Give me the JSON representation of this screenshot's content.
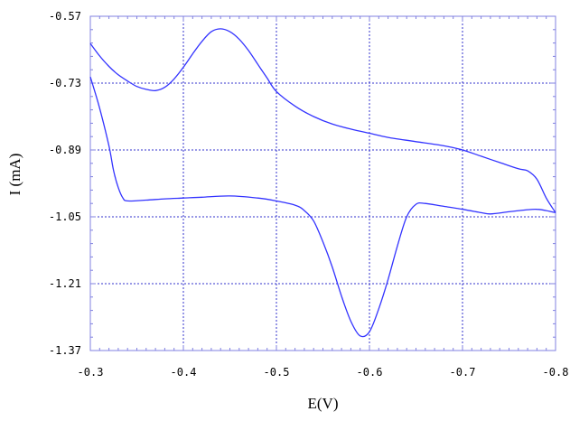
{
  "chart_data": {
    "type": "line",
    "title": "",
    "xlabel": "E(V)",
    "ylabel": "I (mA)",
    "xlim": [
      -0.3,
      -0.8
    ],
    "ylim": [
      -1.37,
      -0.57
    ],
    "x_ticks": [
      -0.3,
      -0.4,
      -0.5,
      -0.6,
      -0.7,
      -0.8
    ],
    "x_tick_labels": [
      "-0.3",
      "-0.4",
      "-0.5",
      "-0.6",
      "-0.7",
      "-0.8"
    ],
    "y_ticks": [
      -0.57,
      -0.73,
      -0.89,
      -1.05,
      -1.21,
      -1.37
    ],
    "y_tick_labels": [
      "-0.57",
      "-0.73",
      "-0.89",
      "-1.05",
      "-1.21",
      "-1.37"
    ],
    "grid": true,
    "legend": "none",
    "colors": {
      "line": "#3333ff",
      "grid": "#3333cc",
      "axes": "#8080e0",
      "frame": "#8080e0"
    },
    "series": [
      {
        "x": [
          -0.3,
          -0.31,
          -0.32,
          -0.33,
          -0.34,
          -0.35,
          -0.36,
          -0.37,
          -0.38,
          -0.39,
          -0.4,
          -0.41,
          -0.42,
          -0.43,
          -0.44,
          -0.45,
          -0.46,
          -0.47,
          -0.48,
          -0.49,
          -0.5,
          -0.52,
          -0.54,
          -0.56,
          -0.58,
          -0.6,
          -0.62,
          -0.65,
          -0.68,
          -0.7,
          -0.72,
          -0.74,
          -0.76,
          -0.77,
          -0.78,
          -0.79,
          -0.8
        ],
        "y": [
          -0.635,
          -0.665,
          -0.69,
          -0.71,
          -0.725,
          -0.738,
          -0.745,
          -0.748,
          -0.74,
          -0.72,
          -0.692,
          -0.66,
          -0.63,
          -0.607,
          -0.6,
          -0.607,
          -0.625,
          -0.652,
          -0.685,
          -0.718,
          -0.75,
          -0.785,
          -0.81,
          -0.828,
          -0.84,
          -0.85,
          -0.86,
          -0.87,
          -0.88,
          -0.89,
          -0.905,
          -0.92,
          -0.935,
          -0.94,
          -0.96,
          -1.005,
          -1.04
        ]
      },
      {
        "x": [
          -0.8,
          -0.79,
          -0.78,
          -0.77,
          -0.75,
          -0.73,
          -0.72,
          -0.7,
          -0.68,
          -0.66,
          -0.65,
          -0.64,
          -0.63,
          -0.62,
          -0.61,
          -0.6,
          -0.59,
          -0.58,
          -0.57,
          -0.56,
          -0.55,
          -0.54,
          -0.53,
          -0.52,
          -0.5,
          -0.48,
          -0.45,
          -0.42,
          -0.4,
          -0.38,
          -0.36,
          -0.34,
          -0.335,
          -0.33,
          -0.325,
          -0.32,
          -0.31,
          -0.3
        ],
        "y": [
          -1.04,
          -1.035,
          -1.032,
          -1.033,
          -1.038,
          -1.043,
          -1.04,
          -1.032,
          -1.025,
          -1.018,
          -1.02,
          -1.05,
          -1.12,
          -1.2,
          -1.27,
          -1.325,
          -1.335,
          -1.3,
          -1.24,
          -1.17,
          -1.11,
          -1.06,
          -1.035,
          -1.022,
          -1.012,
          -1.005,
          -1.0,
          -1.003,
          -1.005,
          -1.007,
          -1.01,
          -1.012,
          -1.005,
          -0.98,
          -0.94,
          -0.88,
          -0.79,
          -0.715
        ]
      }
    ]
  }
}
